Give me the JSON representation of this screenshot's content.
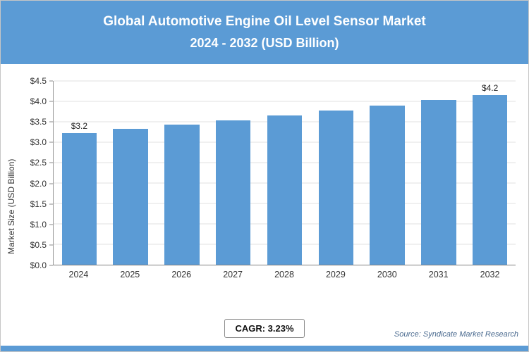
{
  "header": {
    "title_line1": "Global Automotive Engine Oil Level Sensor Market",
    "title_line2": "2024 - 2032 (USD Billion)"
  },
  "chart_data": {
    "type": "bar",
    "title": "Global Automotive Engine Oil Level Sensor Market 2024 - 2032 (USD Billion)",
    "categories": [
      "2024",
      "2025",
      "2026",
      "2027",
      "2028",
      "2029",
      "2030",
      "2031",
      "2032"
    ],
    "values": [
      3.22,
      3.32,
      3.43,
      3.53,
      3.66,
      3.77,
      3.9,
      4.03,
      4.16
    ],
    "bar_labels": [
      "$3.2",
      "",
      "",
      "",
      "",
      "",
      "",
      "",
      "$4.2"
    ],
    "xlabel": "",
    "ylabel": "Market Size (USD Billion)",
    "ylim": [
      0,
      4.5
    ],
    "ytick_step": 0.5,
    "ytick_labels": [
      "$0.0",
      "$0.5",
      "$1.0",
      "$1.5",
      "$2.0",
      "$2.5",
      "$3.0",
      "$3.5",
      "$4.0",
      "$4.5"
    ],
    "grid": true,
    "legend": "none",
    "bar_color": "#5B9BD5"
  },
  "footer": {
    "cagr_label": "CAGR: 3.23%",
    "source": "Source: Syndicate Market Research"
  },
  "colors": {
    "header_bg": "#5B9BD5",
    "bar": "#5B9BD5",
    "bottom_strip": "#5B9BD5"
  }
}
